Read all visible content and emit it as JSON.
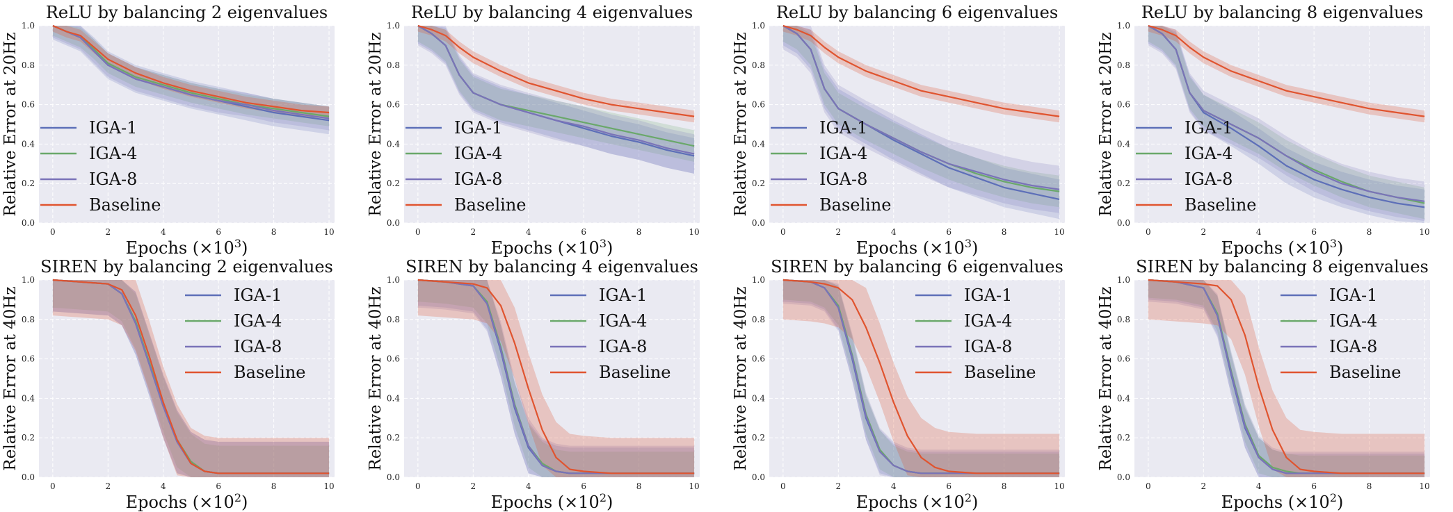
{
  "figure": {
    "colors": {
      "IGA-1": "#5d6fb8",
      "IGA-4": "#6aa86a",
      "IGA-8": "#7a73b8",
      "Baseline": "#e0542f",
      "panel_bg": "#eaeaf2",
      "grid": "#ffffff"
    }
  },
  "chart_data": [
    {
      "type": "line",
      "title": "ReLU by balancing 2 eigenvalues",
      "xlabel": "Epochs (×10",
      "xlabel_exp": "3",
      "xlabel_close": ")",
      "ylabel": "Relative Error at 20Hz",
      "xlim": [
        -0.5,
        10.2
      ],
      "ylim": [
        0,
        1.0
      ],
      "xticks": [
        "0",
        "2",
        "4",
        "6",
        "8",
        "10"
      ],
      "yticks": [
        "0.0",
        "0.2",
        "0.4",
        "0.6",
        "0.8",
        "1.0"
      ],
      "grid": true,
      "legend_position": "lower-left",
      "x": [
        0,
        0.5,
        1,
        1.5,
        2,
        3,
        4,
        5,
        6,
        7,
        8,
        9,
        10
      ],
      "series": [
        {
          "name": "IGA-1",
          "values": [
            1.0,
            0.97,
            0.94,
            0.87,
            0.8,
            0.73,
            0.69,
            0.65,
            0.62,
            0.59,
            0.56,
            0.54,
            0.52
          ],
          "band": 0.07
        },
        {
          "name": "IGA-4",
          "values": [
            1.0,
            0.97,
            0.94,
            0.88,
            0.81,
            0.74,
            0.7,
            0.66,
            0.63,
            0.6,
            0.58,
            0.56,
            0.54
          ],
          "band": 0.05
        },
        {
          "name": "IGA-8",
          "values": [
            1.0,
            0.97,
            0.94,
            0.87,
            0.8,
            0.73,
            0.69,
            0.65,
            0.62,
            0.6,
            0.57,
            0.55,
            0.53
          ],
          "band": 0.06
        },
        {
          "name": "Baseline",
          "values": [
            1.0,
            0.97,
            0.95,
            0.89,
            0.83,
            0.76,
            0.71,
            0.67,
            0.64,
            0.61,
            0.59,
            0.57,
            0.56
          ],
          "band": 0.03
        }
      ]
    },
    {
      "type": "line",
      "title": "ReLU by balancing 4 eigenvalues",
      "xlabel": "Epochs (×10",
      "xlabel_exp": "3",
      "xlabel_close": ")",
      "ylabel": "Relative Error at 20Hz",
      "xlim": [
        -0.5,
        10.2
      ],
      "ylim": [
        0,
        1.0
      ],
      "xticks": [
        "0",
        "2",
        "4",
        "6",
        "8",
        "10"
      ],
      "yticks": [
        "0.0",
        "0.2",
        "0.4",
        "0.6",
        "0.8",
        "1.0"
      ],
      "grid": true,
      "legend_position": "lower-left",
      "x": [
        0,
        0.5,
        1,
        1.5,
        2,
        3,
        4,
        5,
        6,
        7,
        8,
        9,
        10
      ],
      "series": [
        {
          "name": "IGA-1",
          "values": [
            1.0,
            0.96,
            0.9,
            0.75,
            0.66,
            0.6,
            0.56,
            0.52,
            0.48,
            0.44,
            0.41,
            0.37,
            0.34
          ],
          "band": 0.09
        },
        {
          "name": "IGA-4",
          "values": [
            1.0,
            0.96,
            0.9,
            0.75,
            0.66,
            0.6,
            0.57,
            0.54,
            0.51,
            0.48,
            0.45,
            0.42,
            0.39
          ],
          "band": 0.08
        },
        {
          "name": "IGA-8",
          "values": [
            1.0,
            0.96,
            0.9,
            0.75,
            0.66,
            0.6,
            0.56,
            0.52,
            0.49,
            0.45,
            0.42,
            0.38,
            0.35
          ],
          "band": 0.1
        },
        {
          "name": "Baseline",
          "values": [
            1.0,
            0.98,
            0.95,
            0.89,
            0.84,
            0.77,
            0.71,
            0.67,
            0.63,
            0.6,
            0.58,
            0.56,
            0.54
          ],
          "band": 0.03
        }
      ]
    },
    {
      "type": "line",
      "title": "ReLU by balancing 6 eigenvalues",
      "xlabel": "Epochs (×10",
      "xlabel_exp": "3",
      "xlabel_close": ")",
      "ylabel": "Relative Error at 20Hz",
      "xlim": [
        -0.5,
        10.2
      ],
      "ylim": [
        0,
        1.0
      ],
      "xticks": [
        "0",
        "2",
        "4",
        "6",
        "8",
        "10"
      ],
      "yticks": [
        "0.0",
        "0.2",
        "0.4",
        "0.6",
        "0.8",
        "1.0"
      ],
      "grid": true,
      "legend_position": "lower-left",
      "x": [
        0,
        0.5,
        1,
        1.5,
        2,
        3,
        4,
        5,
        6,
        7,
        8,
        9,
        10
      ],
      "series": [
        {
          "name": "IGA-1",
          "values": [
            1.0,
            0.96,
            0.88,
            0.68,
            0.58,
            0.5,
            0.42,
            0.35,
            0.28,
            0.23,
            0.18,
            0.15,
            0.12
          ],
          "band": 0.1
        },
        {
          "name": "IGA-4",
          "values": [
            1.0,
            0.96,
            0.88,
            0.68,
            0.58,
            0.5,
            0.43,
            0.36,
            0.3,
            0.25,
            0.21,
            0.18,
            0.16
          ],
          "band": 0.08
        },
        {
          "name": "IGA-8",
          "values": [
            1.0,
            0.96,
            0.88,
            0.68,
            0.58,
            0.5,
            0.43,
            0.36,
            0.3,
            0.26,
            0.22,
            0.19,
            0.17
          ],
          "band": 0.12
        },
        {
          "name": "Baseline",
          "values": [
            1.0,
            0.98,
            0.95,
            0.89,
            0.84,
            0.77,
            0.72,
            0.67,
            0.64,
            0.61,
            0.58,
            0.56,
            0.54
          ],
          "band": 0.03
        }
      ]
    },
    {
      "type": "line",
      "title": "ReLU by balancing 8 eigenvalues",
      "xlabel": "Epochs (×10",
      "xlabel_exp": "3",
      "xlabel_close": ")",
      "ylabel": "Relative Error at 20Hz",
      "xlim": [
        -0.5,
        10.2
      ],
      "ylim": [
        0,
        1.0
      ],
      "xticks": [
        "0",
        "2",
        "4",
        "6",
        "8",
        "10"
      ],
      "yticks": [
        "0.0",
        "0.2",
        "0.4",
        "0.6",
        "0.8",
        "1.0"
      ],
      "grid": true,
      "legend_position": "lower-left",
      "x": [
        0,
        0.5,
        1,
        1.5,
        2,
        3,
        4,
        5,
        6,
        7,
        8,
        9,
        10
      ],
      "series": [
        {
          "name": "IGA-1",
          "values": [
            1.0,
            0.96,
            0.88,
            0.66,
            0.56,
            0.48,
            0.39,
            0.29,
            0.22,
            0.17,
            0.13,
            0.1,
            0.08
          ],
          "band": 0.09
        },
        {
          "name": "IGA-4",
          "values": [
            1.0,
            0.96,
            0.88,
            0.66,
            0.57,
            0.5,
            0.43,
            0.34,
            0.27,
            0.21,
            0.16,
            0.13,
            0.1
          ],
          "band": 0.08
        },
        {
          "name": "IGA-8",
          "values": [
            1.0,
            0.96,
            0.88,
            0.66,
            0.57,
            0.5,
            0.43,
            0.34,
            0.26,
            0.2,
            0.16,
            0.13,
            0.11
          ],
          "band": 0.1
        },
        {
          "name": "Baseline",
          "values": [
            1.0,
            0.98,
            0.95,
            0.89,
            0.84,
            0.77,
            0.72,
            0.67,
            0.64,
            0.61,
            0.58,
            0.56,
            0.54
          ],
          "band": 0.03
        }
      ]
    },
    {
      "type": "line",
      "title": "SIREN by balancing 2 eigenvalues",
      "xlabel": "Epochs (×10",
      "xlabel_exp": "2",
      "xlabel_close": ")",
      "ylabel": "Relative Error at 40Hz",
      "xlim": [
        -0.5,
        10.2
      ],
      "ylim": [
        0,
        1.0
      ],
      "xticks": [
        "0",
        "2",
        "4",
        "6",
        "8",
        "10"
      ],
      "yticks": [
        "0.0",
        "0.2",
        "0.4",
        "0.6",
        "0.8",
        "1.0"
      ],
      "grid": true,
      "legend_position": "upper-right",
      "x": [
        0,
        1,
        2,
        2.5,
        3,
        3.5,
        4,
        4.5,
        5,
        5.5,
        6,
        7,
        8,
        9,
        10
      ],
      "series": [
        {
          "name": "IGA-1",
          "values": [
            1.0,
            0.99,
            0.98,
            0.93,
            0.78,
            0.57,
            0.36,
            0.18,
            0.07,
            0.03,
            0.02,
            0.02,
            0.02,
            0.02,
            0.02
          ],
          "band": 0.16
        },
        {
          "name": "IGA-4",
          "values": [
            1.0,
            0.99,
            0.98,
            0.93,
            0.79,
            0.58,
            0.37,
            0.19,
            0.08,
            0.03,
            0.02,
            0.02,
            0.02,
            0.02,
            0.02
          ],
          "band": 0.14
        },
        {
          "name": "IGA-8",
          "values": [
            1.0,
            0.99,
            0.98,
            0.93,
            0.78,
            0.57,
            0.36,
            0.18,
            0.07,
            0.03,
            0.02,
            0.02,
            0.02,
            0.02,
            0.02
          ],
          "band": 0.16
        },
        {
          "name": "Baseline",
          "values": [
            1.0,
            0.99,
            0.98,
            0.95,
            0.82,
            0.61,
            0.38,
            0.19,
            0.07,
            0.03,
            0.02,
            0.02,
            0.02,
            0.02,
            0.02
          ],
          "band": 0.18
        }
      ]
    },
    {
      "type": "line",
      "title": "SIREN by balancing 4 eigenvalues",
      "xlabel": "Epochs (×10",
      "xlabel_exp": "2",
      "xlabel_close": ")",
      "ylabel": "Relative Error at 40Hz",
      "xlim": [
        -0.5,
        10.2
      ],
      "ylim": [
        0,
        1.0
      ],
      "xticks": [
        "0",
        "2",
        "4",
        "6",
        "8",
        "10"
      ],
      "yticks": [
        "0.0",
        "0.2",
        "0.4",
        "0.6",
        "0.8",
        "1.0"
      ],
      "grid": true,
      "legend_position": "upper-right",
      "x": [
        0,
        1,
        2,
        2.5,
        3,
        3.5,
        4,
        4.5,
        5,
        5.5,
        6,
        7,
        8,
        9,
        10
      ],
      "series": [
        {
          "name": "IGA-1",
          "values": [
            1.0,
            0.99,
            0.97,
            0.88,
            0.64,
            0.35,
            0.15,
            0.06,
            0.03,
            0.02,
            0.02,
            0.02,
            0.02,
            0.02,
            0.02
          ],
          "band": 0.13
        },
        {
          "name": "IGA-4",
          "values": [
            1.0,
            0.99,
            0.97,
            0.89,
            0.66,
            0.37,
            0.16,
            0.07,
            0.03,
            0.02,
            0.02,
            0.02,
            0.02,
            0.02,
            0.02
          ],
          "band": 0.11
        },
        {
          "name": "IGA-8",
          "values": [
            1.0,
            0.99,
            0.97,
            0.88,
            0.65,
            0.36,
            0.16,
            0.06,
            0.03,
            0.02,
            0.02,
            0.02,
            0.02,
            0.02,
            0.02
          ],
          "band": 0.14
        },
        {
          "name": "Baseline",
          "values": [
            1.0,
            0.99,
            0.98,
            0.96,
            0.87,
            0.68,
            0.45,
            0.24,
            0.1,
            0.04,
            0.03,
            0.02,
            0.02,
            0.02,
            0.02
          ],
          "band": 0.18
        }
      ]
    },
    {
      "type": "line",
      "title": "SIREN by balancing 6 eigenvalues",
      "xlabel": "Epochs (×10",
      "xlabel_exp": "2",
      "xlabel_close": ")",
      "ylabel": "Relative Error at 40Hz",
      "xlim": [
        -0.5,
        10.2
      ],
      "ylim": [
        0,
        1.0
      ],
      "xticks": [
        "0",
        "2",
        "4",
        "6",
        "8",
        "10"
      ],
      "yticks": [
        "0.0",
        "0.2",
        "0.4",
        "0.6",
        "0.8",
        "1.0"
      ],
      "grid": true,
      "legend_position": "upper-right",
      "x": [
        0,
        1,
        1.5,
        2,
        2.5,
        3,
        3.5,
        4,
        4.5,
        5,
        5.5,
        6,
        7,
        8,
        9,
        10
      ],
      "series": [
        {
          "name": "IGA-1",
          "values": [
            1.0,
            0.99,
            0.96,
            0.86,
            0.6,
            0.3,
            0.13,
            0.06,
            0.03,
            0.02,
            0.02,
            0.02,
            0.02,
            0.02,
            0.02,
            0.02
          ],
          "band": 0.11
        },
        {
          "name": "IGA-4",
          "values": [
            1.0,
            0.99,
            0.96,
            0.87,
            0.62,
            0.32,
            0.14,
            0.06,
            0.03,
            0.02,
            0.02,
            0.02,
            0.02,
            0.02,
            0.02,
            0.02
          ],
          "band": 0.1
        },
        {
          "name": "IGA-8",
          "values": [
            1.0,
            0.99,
            0.96,
            0.86,
            0.61,
            0.31,
            0.13,
            0.06,
            0.03,
            0.02,
            0.02,
            0.02,
            0.02,
            0.02,
            0.02,
            0.02
          ],
          "band": 0.12
        },
        {
          "name": "Baseline",
          "values": [
            1.0,
            0.99,
            0.98,
            0.96,
            0.9,
            0.76,
            0.58,
            0.38,
            0.21,
            0.1,
            0.05,
            0.03,
            0.02,
            0.02,
            0.02,
            0.02
          ],
          "band": 0.2
        }
      ]
    },
    {
      "type": "line",
      "title": "SIREN by balancing 8 eigenvalues",
      "xlabel": "Epochs (×10",
      "xlabel_exp": "2",
      "xlabel_close": ")",
      "ylabel": "Relative Error at 40Hz",
      "xlim": [
        -0.5,
        10.2
      ],
      "ylim": [
        0,
        1.0
      ],
      "xticks": [
        "0",
        "2",
        "4",
        "6",
        "8",
        "10"
      ],
      "yticks": [
        "0.0",
        "0.2",
        "0.4",
        "0.6",
        "0.8",
        "1.0"
      ],
      "grid": true,
      "legend_position": "upper-right",
      "x": [
        0,
        1,
        2,
        2.5,
        3,
        3.5,
        4,
        4.5,
        5,
        5.5,
        6,
        7,
        8,
        9,
        10
      ],
      "series": [
        {
          "name": "IGA-1",
          "values": [
            1.0,
            0.99,
            0.96,
            0.82,
            0.52,
            0.25,
            0.1,
            0.04,
            0.02,
            0.02,
            0.02,
            0.02,
            0.02,
            0.02,
            0.02
          ],
          "band": 0.1
        },
        {
          "name": "IGA-4",
          "values": [
            1.0,
            0.99,
            0.96,
            0.83,
            0.54,
            0.27,
            0.11,
            0.05,
            0.03,
            0.02,
            0.02,
            0.02,
            0.02,
            0.02,
            0.02
          ],
          "band": 0.09
        },
        {
          "name": "IGA-8",
          "values": [
            1.0,
            0.99,
            0.96,
            0.82,
            0.53,
            0.26,
            0.1,
            0.04,
            0.02,
            0.02,
            0.02,
            0.02,
            0.02,
            0.02,
            0.02
          ],
          "band": 0.11
        },
        {
          "name": "Baseline",
          "values": [
            1.0,
            0.99,
            0.98,
            0.97,
            0.9,
            0.72,
            0.46,
            0.24,
            0.1,
            0.04,
            0.03,
            0.02,
            0.02,
            0.02,
            0.02
          ],
          "band": 0.2
        }
      ]
    }
  ]
}
